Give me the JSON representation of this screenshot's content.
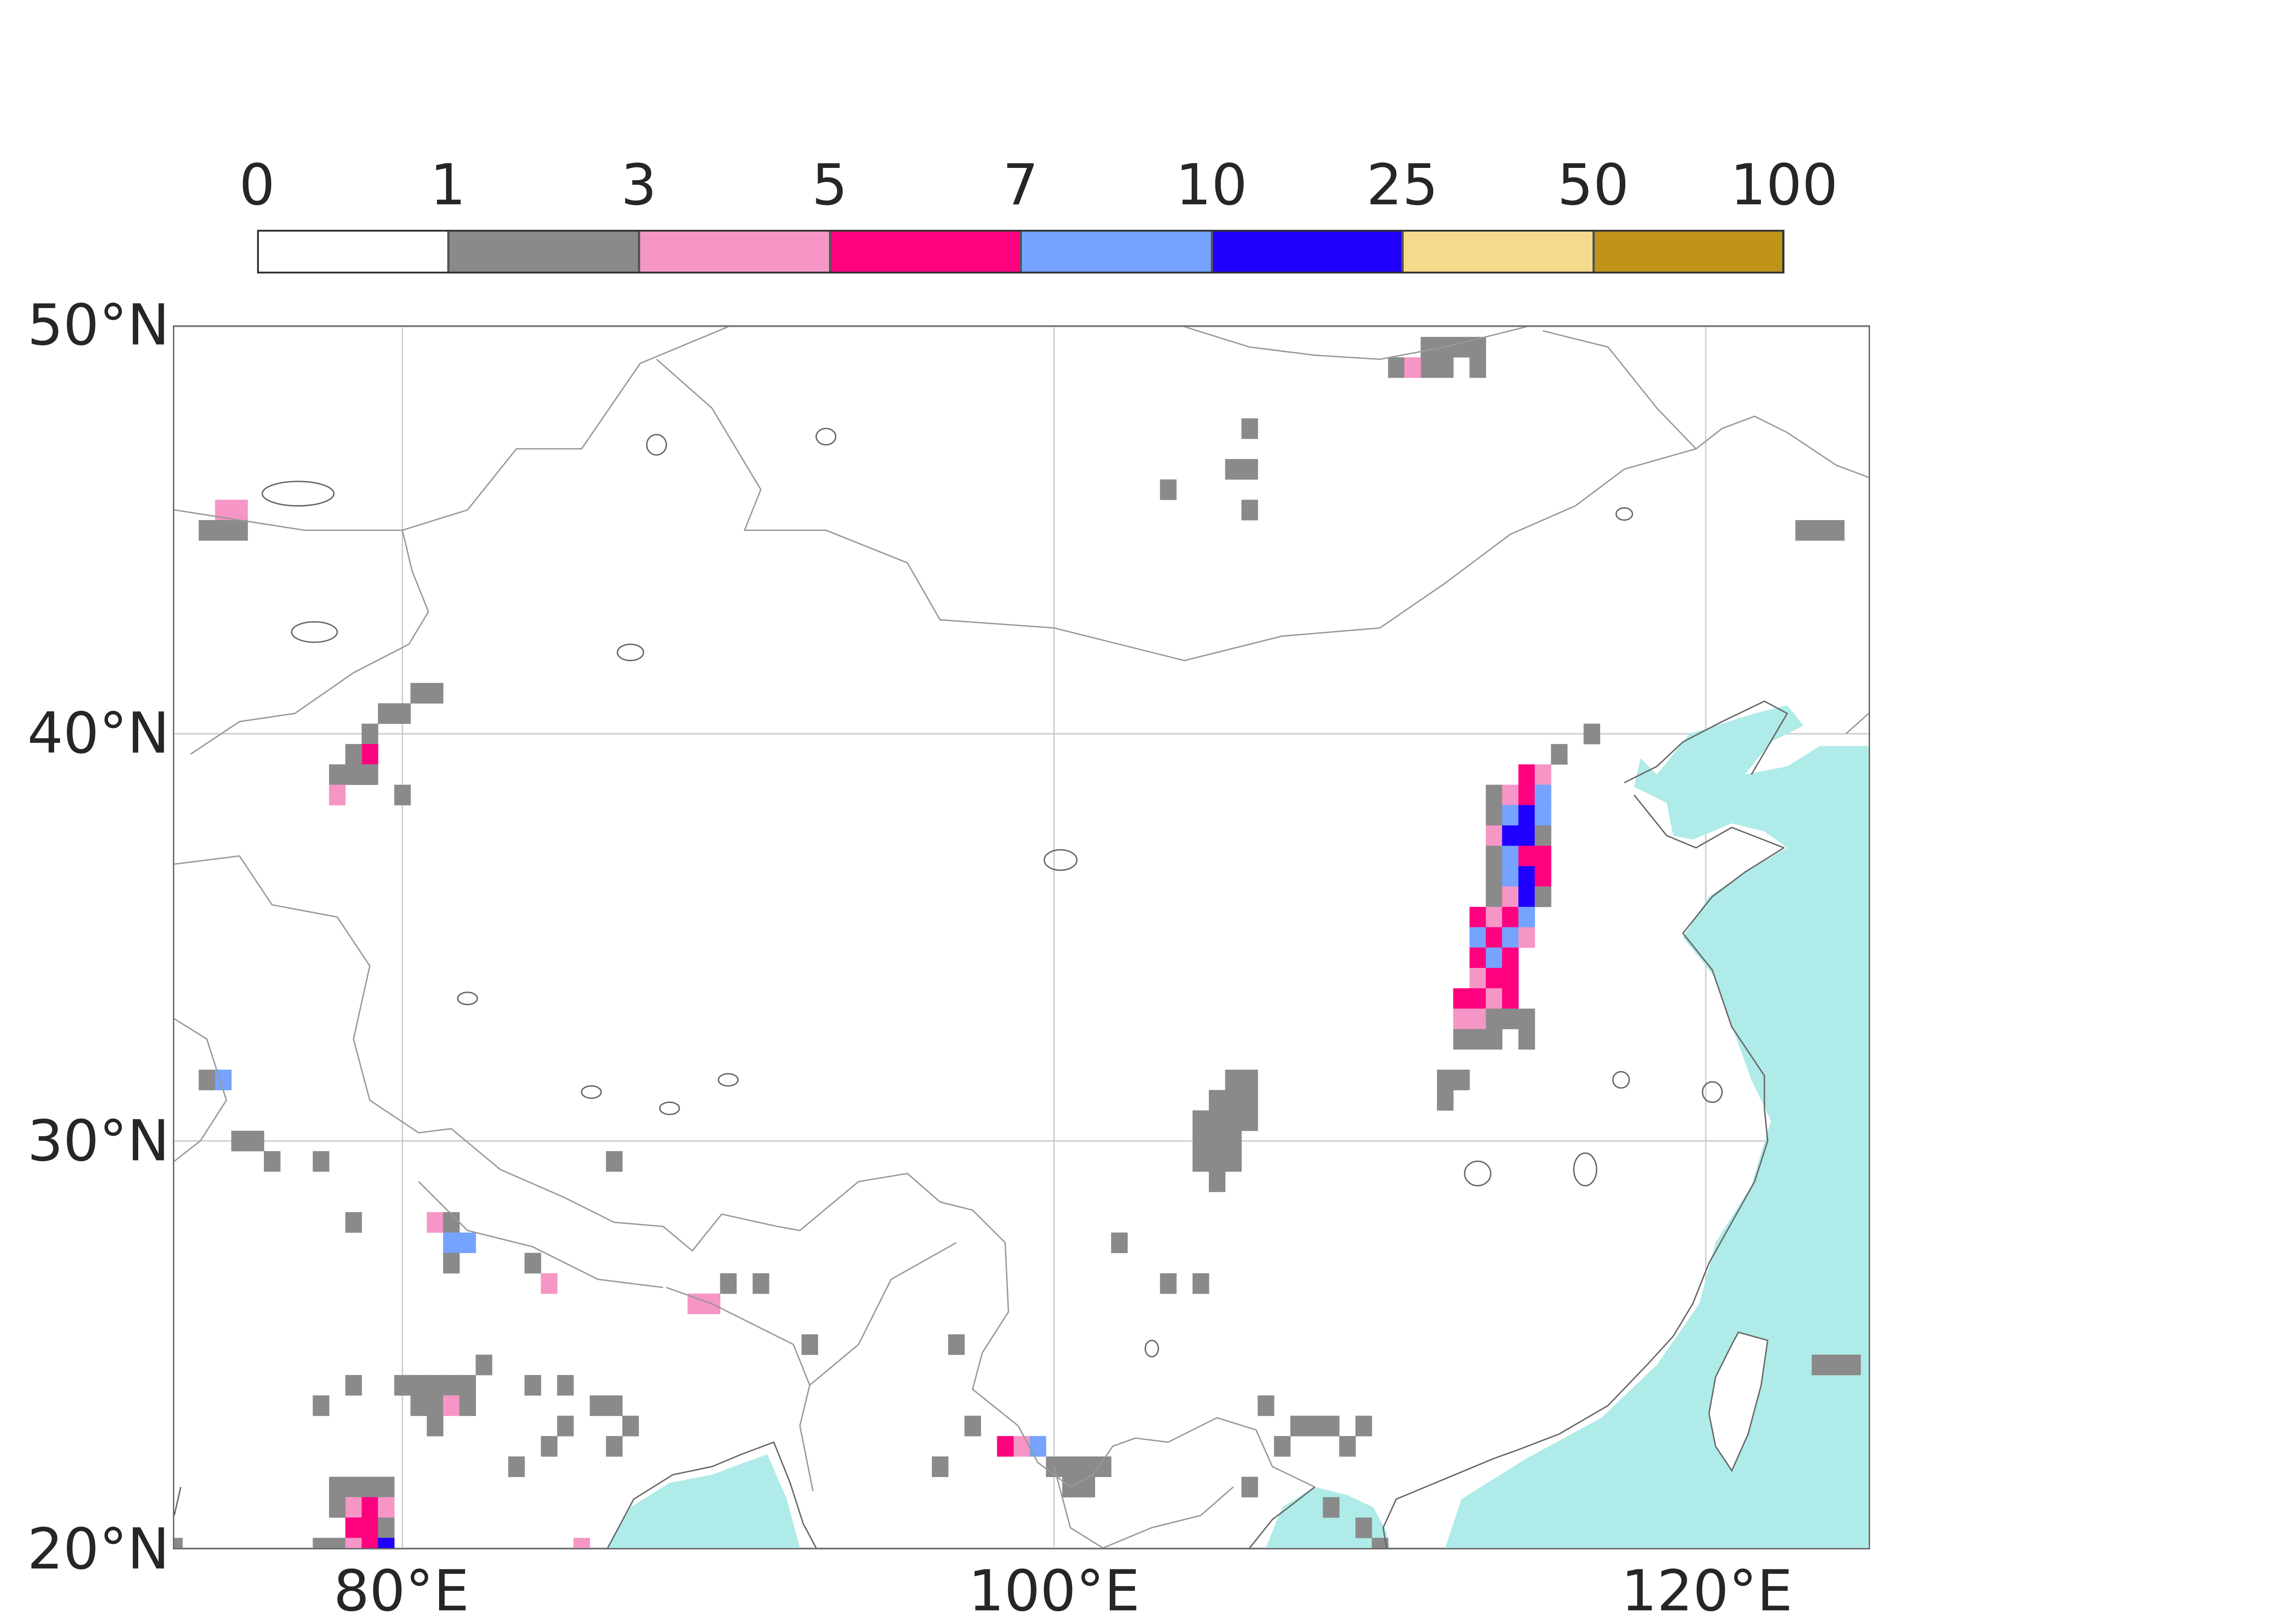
{
  "legend": {
    "boundaries": [
      "0",
      "1",
      "3",
      "5",
      "7",
      "10",
      "25",
      "50",
      "100"
    ],
    "colors": [
      "#ffffff",
      "#8a8a8a",
      "#f596c6",
      "#ff007f",
      "#75a3ff",
      "#1f00ff",
      "#f5d98c",
      "#bf9419"
    ]
  },
  "map": {
    "extent": {
      "lon_min": 73,
      "lon_max": 125,
      "lat_min": 20,
      "lat_max": 50
    },
    "lat_ticks": [
      {
        "value": 50,
        "label": "50°N"
      },
      {
        "value": 40,
        "label": "40°N"
      },
      {
        "value": 30,
        "label": "30°N"
      },
      {
        "value": 20,
        "label": "20°N"
      }
    ],
    "lon_ticks": [
      {
        "value": 80,
        "label": "80°E"
      },
      {
        "value": 100,
        "label": "100°E"
      },
      {
        "value": 120,
        "label": "120°E"
      }
    ],
    "gridlines": true,
    "colors": {
      "ocean_mask": "#afebe8",
      "coastline": "#666666",
      "border": "#999999",
      "grid": "#cccccc"
    },
    "cell_size_deg": 0.5,
    "cells": [
      [
        111.5,
        49.5,
        1
      ],
      [
        112.0,
        49.5,
        1
      ],
      [
        112.5,
        49.5,
        1
      ],
      [
        113.0,
        49.5,
        1
      ],
      [
        110.5,
        49.0,
        1
      ],
      [
        111.5,
        49.0,
        1
      ],
      [
        112.0,
        49.0,
        1
      ],
      [
        113.0,
        49.0,
        1
      ],
      [
        111.0,
        49.0,
        2
      ],
      [
        106.0,
        47.5,
        1
      ],
      [
        106.0,
        46.5,
        1
      ],
      [
        105.5,
        46.5,
        1
      ],
      [
        103.5,
        46.0,
        1
      ],
      [
        106.0,
        45.5,
        1
      ],
      [
        123.0,
        45.0,
        1
      ],
      [
        123.5,
        45.0,
        1
      ],
      [
        124.0,
        45.0,
        1
      ],
      [
        74.5,
        45.5,
        2
      ],
      [
        75.0,
        45.5,
        2
      ],
      [
        74.0,
        45.0,
        1
      ],
      [
        74.5,
        45.0,
        1
      ],
      [
        75.0,
        45.0,
        1
      ],
      [
        80.5,
        41.0,
        1
      ],
      [
        81.0,
        41.0,
        1
      ],
      [
        79.5,
        40.5,
        1
      ],
      [
        80.0,
        40.5,
        1
      ],
      [
        79.0,
        40.0,
        1
      ],
      [
        79.0,
        39.5,
        3
      ],
      [
        78.5,
        39.5,
        1
      ],
      [
        79.0,
        39.0,
        1
      ],
      [
        78.0,
        39.0,
        1
      ],
      [
        78.5,
        39.0,
        1
      ],
      [
        78.0,
        38.5,
        2
      ],
      [
        80.0,
        38.5,
        1
      ],
      [
        116.5,
        40.0,
        1
      ],
      [
        115.5,
        39.5,
        1
      ],
      [
        114.5,
        39.0,
        3
      ],
      [
        115.0,
        39.0,
        2
      ],
      [
        113.5,
        38.5,
        1
      ],
      [
        114.0,
        38.5,
        2
      ],
      [
        114.5,
        38.5,
        3
      ],
      [
        115.0,
        38.5,
        4
      ],
      [
        113.5,
        38.0,
        1
      ],
      [
        114.0,
        38.0,
        4
      ],
      [
        114.5,
        38.0,
        5
      ],
      [
        115.0,
        38.0,
        4
      ],
      [
        113.5,
        37.5,
        2
      ],
      [
        114.0,
        37.5,
        5
      ],
      [
        114.5,
        37.5,
        5
      ],
      [
        115.0,
        37.5,
        1
      ],
      [
        113.5,
        37.0,
        1
      ],
      [
        114.0,
        37.0,
        4
      ],
      [
        114.5,
        37.0,
        3
      ],
      [
        115.0,
        37.0,
        3
      ],
      [
        113.5,
        36.5,
        1
      ],
      [
        114.0,
        36.5,
        4
      ],
      [
        114.5,
        36.5,
        5
      ],
      [
        115.0,
        36.5,
        3
      ],
      [
        113.5,
        36.0,
        1
      ],
      [
        114.0,
        36.0,
        2
      ],
      [
        114.5,
        36.0,
        5
      ],
      [
        115.0,
        36.0,
        1
      ],
      [
        113.0,
        35.5,
        3
      ],
      [
        113.5,
        35.5,
        2
      ],
      [
        114.0,
        35.5,
        3
      ],
      [
        114.5,
        35.5,
        4
      ],
      [
        113.0,
        35.0,
        4
      ],
      [
        113.5,
        35.0,
        3
      ],
      [
        114.0,
        35.0,
        4
      ],
      [
        114.5,
        35.0,
        2
      ],
      [
        113.0,
        34.5,
        3
      ],
      [
        113.5,
        34.5,
        4
      ],
      [
        114.0,
        34.5,
        3
      ],
      [
        113.0,
        34.0,
        2
      ],
      [
        113.5,
        34.0,
        3
      ],
      [
        114.0,
        34.0,
        3
      ],
      [
        112.5,
        33.5,
        3
      ],
      [
        113.0,
        33.5,
        3
      ],
      [
        113.5,
        33.5,
        2
      ],
      [
        114.0,
        33.5,
        3
      ],
      [
        112.5,
        33.0,
        2
      ],
      [
        113.0,
        33.0,
        2
      ],
      [
        113.5,
        33.0,
        1
      ],
      [
        114.0,
        33.0,
        1
      ],
      [
        114.5,
        33.0,
        1
      ],
      [
        112.5,
        32.5,
        1
      ],
      [
        113.0,
        32.5,
        1
      ],
      [
        113.5,
        32.5,
        1
      ],
      [
        114.5,
        32.5,
        1
      ],
      [
        112.0,
        31.5,
        1
      ],
      [
        112.5,
        31.5,
        1
      ],
      [
        112.0,
        31.0,
        1
      ],
      [
        105.5,
        31.5,
        1
      ],
      [
        106.0,
        31.5,
        1
      ],
      [
        105.0,
        31.0,
        1
      ],
      [
        105.5,
        31.0,
        1
      ],
      [
        106.0,
        31.0,
        1
      ],
      [
        104.5,
        30.5,
        1
      ],
      [
        105.0,
        30.5,
        1
      ],
      [
        105.5,
        30.5,
        1
      ],
      [
        106.0,
        30.5,
        1
      ],
      [
        104.5,
        30.0,
        1
      ],
      [
        105.0,
        30.0,
        1
      ],
      [
        105.5,
        30.0,
        1
      ],
      [
        104.5,
        29.5,
        1
      ],
      [
        105.0,
        29.5,
        1
      ],
      [
        105.5,
        29.5,
        1
      ],
      [
        105.0,
        29.0,
        1
      ],
      [
        74.0,
        31.5,
        1
      ],
      [
        74.5,
        31.5,
        4
      ],
      [
        75.5,
        30.0,
        1
      ],
      [
        75.0,
        30.0,
        1
      ],
      [
        76.0,
        29.5,
        1
      ],
      [
        77.5,
        29.5,
        1
      ],
      [
        86.5,
        29.5,
        1
      ],
      [
        81.0,
        28.0,
        2
      ],
      [
        81.5,
        28.0,
        1
      ],
      [
        81.5,
        27.5,
        4
      ],
      [
        82.0,
        27.5,
        4
      ],
      [
        81.5,
        27.0,
        1
      ],
      [
        84.0,
        27.0,
        1
      ],
      [
        84.5,
        26.5,
        2
      ],
      [
        90.0,
        26.5,
        1
      ],
      [
        91.0,
        26.5,
        1
      ],
      [
        89.0,
        26.0,
        2
      ],
      [
        89.5,
        26.0,
        2
      ],
      [
        92.5,
        25.0,
        1
      ],
      [
        97.0,
        25.0,
        1
      ],
      [
        103.5,
        26.5,
        1
      ],
      [
        104.5,
        26.5,
        1
      ],
      [
        102.0,
        27.5,
        1
      ],
      [
        78.5,
        28.0,
        1
      ],
      [
        82.0,
        24.0,
        1
      ],
      [
        82.5,
        24.5,
        1
      ],
      [
        80.0,
        24.0,
        1
      ],
      [
        80.5,
        24.0,
        1
      ],
      [
        81.0,
        24.0,
        1
      ],
      [
        81.5,
        24.0,
        1
      ],
      [
        80.5,
        23.5,
        1
      ],
      [
        81.0,
        23.5,
        1
      ],
      [
        81.5,
        23.5,
        2
      ],
      [
        82.0,
        23.5,
        1
      ],
      [
        81.0,
        23.0,
        1
      ],
      [
        78.5,
        24.0,
        1
      ],
      [
        77.5,
        23.5,
        1
      ],
      [
        84.0,
        24.0,
        1
      ],
      [
        85.0,
        24.0,
        1
      ],
      [
        86.0,
        23.5,
        1
      ],
      [
        86.5,
        23.5,
        1
      ],
      [
        87.0,
        23.0,
        1
      ],
      [
        85.0,
        23.0,
        1
      ],
      [
        84.5,
        22.5,
        1
      ],
      [
        86.5,
        22.5,
        1
      ],
      [
        83.5,
        22.0,
        1
      ],
      [
        78.0,
        21.5,
        1
      ],
      [
        78.5,
        21.5,
        1
      ],
      [
        79.0,
        21.5,
        1
      ],
      [
        79.5,
        21.5,
        1
      ],
      [
        78.5,
        21.0,
        2
      ],
      [
        79.0,
        21.0,
        3
      ],
      [
        79.5,
        21.0,
        2
      ],
      [
        78.0,
        21.0,
        1
      ],
      [
        78.5,
        20.5,
        3
      ],
      [
        79.0,
        20.5,
        3
      ],
      [
        79.5,
        20.5,
        1
      ],
      [
        77.5,
        20.0,
        1
      ],
      [
        78.0,
        20.0,
        1
      ],
      [
        78.5,
        20.0,
        2
      ],
      [
        79.0,
        20.0,
        3
      ],
      [
        79.5,
        20.0,
        5
      ],
      [
        73.0,
        20.0,
        1
      ],
      [
        85.5,
        20.0,
        2
      ],
      [
        97.5,
        23.0,
        1
      ],
      [
        99.0,
        22.5,
        2
      ],
      [
        99.5,
        22.5,
        4
      ],
      [
        98.5,
        22.5,
        3
      ],
      [
        96.5,
        22.0,
        1
      ],
      [
        100.0,
        22.0,
        1
      ],
      [
        100.5,
        22.0,
        1
      ],
      [
        101.0,
        22.0,
        1
      ],
      [
        101.5,
        22.0,
        1
      ],
      [
        100.5,
        21.5,
        1
      ],
      [
        101.0,
        21.5,
        1
      ],
      [
        106.5,
        23.5,
        1
      ],
      [
        107.5,
        23.0,
        1
      ],
      [
        108.0,
        23.0,
        1
      ],
      [
        108.5,
        23.0,
        1
      ],
      [
        109.5,
        23.0,
        1
      ],
      [
        107.0,
        22.5,
        1
      ],
      [
        109.0,
        22.5,
        1
      ],
      [
        106.0,
        21.5,
        1
      ],
      [
        108.5,
        21.0,
        1
      ],
      [
        109.5,
        20.5,
        1
      ],
      [
        110.0,
        20.0,
        1
      ],
      [
        124.0,
        24.5,
        1
      ],
      [
        124.5,
        24.5,
        1
      ],
      [
        123.5,
        24.5,
        1
      ]
    ]
  }
}
